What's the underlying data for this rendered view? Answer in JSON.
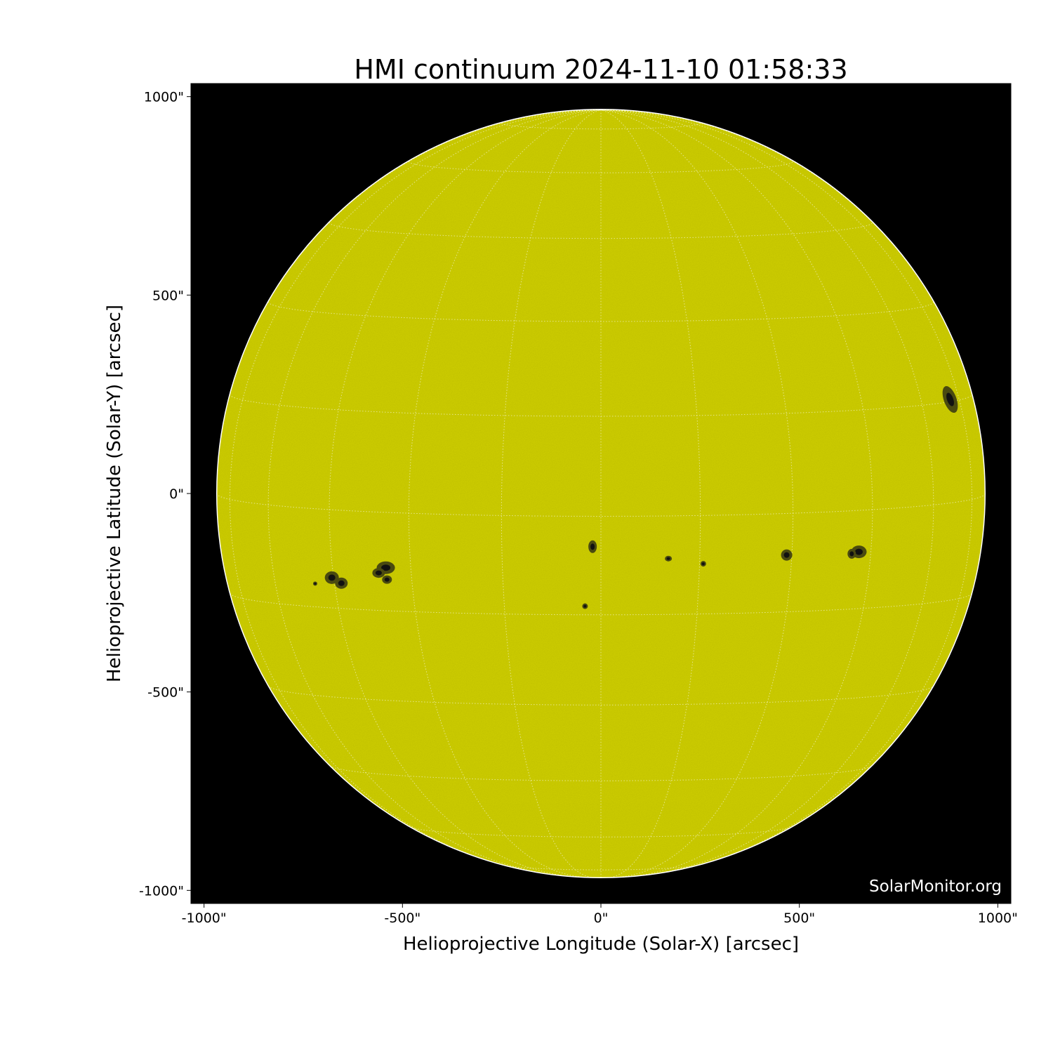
{
  "chart_data": {
    "type": "image",
    "title": "HMI continuum 2024-11-10 01:58:33",
    "xlabel": "Helioprojective Longitude (Solar-X) [arcsec]",
    "ylabel": "Helioprojective Latitude (Solar-Y) [arcsec]",
    "xlim": [
      -1033,
      1033
    ],
    "ylim": [
      -1033,
      1033
    ],
    "x_ticks": [
      -1000,
      -500,
      0,
      500,
      1000
    ],
    "x_tick_labels": [
      "-1000\"",
      "-500\"",
      "0\"",
      "500\"",
      "1000\""
    ],
    "y_ticks": [
      1000,
      500,
      0,
      -500,
      -1000
    ],
    "y_tick_labels": [
      "1000\"",
      "500\"",
      "0\"",
      "-500\"",
      "-1000\""
    ],
    "solar_radius_arcsec": 968,
    "grid": "heliographic, 15 degree spacing",
    "disk_color": "#cccc00",
    "background_color": "#000000",
    "watermark": "SolarMonitor.org"
  }
}
